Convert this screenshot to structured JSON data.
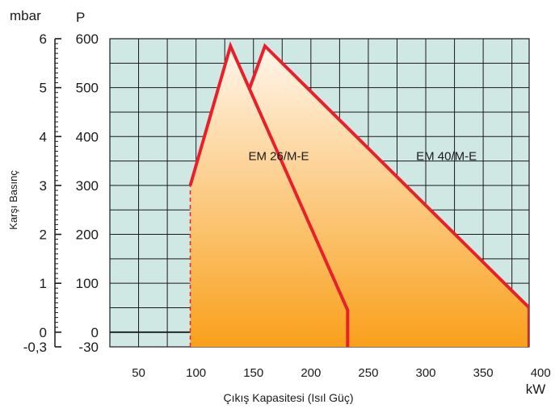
{
  "chart_data": {
    "type": "area",
    "xlabel": "Çıkış Kapasitesi (Isıl Güç)",
    "x_unit": "kW",
    "ylabel": "Karşı Basınç",
    "y_unit_left": "mbar",
    "y_unit_right": "P",
    "xlim": [
      25,
      390
    ],
    "ylim": [
      -30,
      600
    ],
    "x_ticks": [
      50,
      100,
      150,
      200,
      250,
      300,
      350,
      400
    ],
    "y_ticks_pa": [
      -30,
      0,
      100,
      200,
      300,
      400,
      500,
      600
    ],
    "y_ticks_mbar": [
      "-0,3",
      "0",
      "1",
      "2",
      "3",
      "4",
      "5",
      "6"
    ],
    "grid": true,
    "grid_x_step": 25,
    "grid_y_step": 50,
    "colors": {
      "plot_bg": "#cfe8e4",
      "grid": "#1a1a1a",
      "outline": "#e8202a",
      "fill_top": "#fff6ec",
      "fill_bottom": "#f9a01b"
    },
    "series": [
      {
        "name": "EM 26/M-E",
        "points": [
          [
            95,
            -30
          ],
          [
            95,
            300
          ],
          [
            130,
            585
          ],
          [
            232,
            45
          ],
          [
            232,
            -30
          ]
        ]
      },
      {
        "name": "EM 40/M-E",
        "points": [
          [
            116,
            -30
          ],
          [
            116,
            300
          ],
          [
            160,
            585
          ],
          [
            390,
            50
          ],
          [
            390,
            -30
          ]
        ],
        "hidden_edge": [
          [
            116,
            -30
          ],
          [
            116,
            300
          ],
          [
            148,
            507
          ]
        ]
      }
    ]
  }
}
